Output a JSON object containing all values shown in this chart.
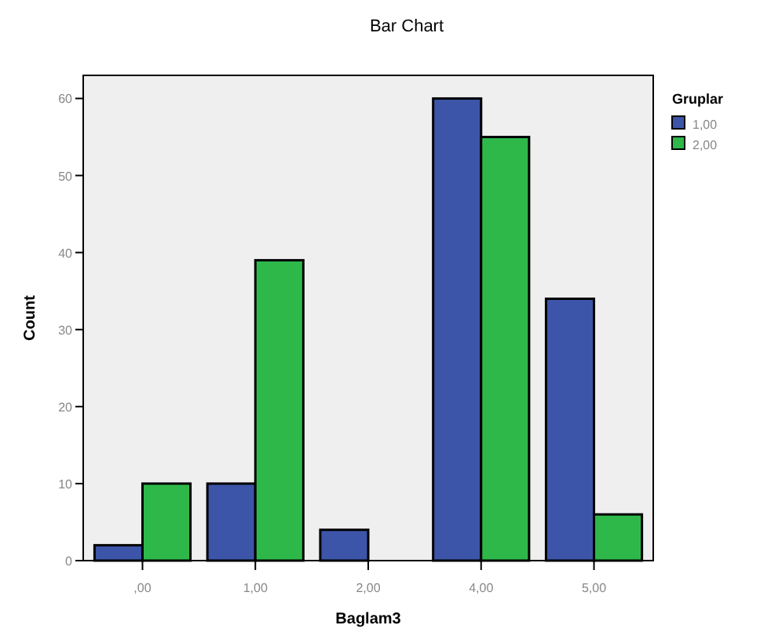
{
  "chart_data": {
    "type": "bar",
    "title": "Bar Chart",
    "xlabel": "Baglam3",
    "ylabel": "Count",
    "legend_title": "Gruplar",
    "legend": "right",
    "categories": [
      ",00",
      "1,00",
      "2,00",
      "4,00",
      "5,00"
    ],
    "series": [
      {
        "name": "1,00",
        "color": "#3c55a8",
        "values": [
          2,
          10,
          4,
          60,
          34
        ]
      },
      {
        "name": "2,00",
        "color": "#2fb84a",
        "values": [
          10,
          39,
          null,
          55,
          6
        ]
      }
    ],
    "ylim": [
      0,
      63
    ],
    "yticks": [
      0,
      10,
      20,
      30,
      40,
      50,
      60
    ],
    "grid": false
  }
}
